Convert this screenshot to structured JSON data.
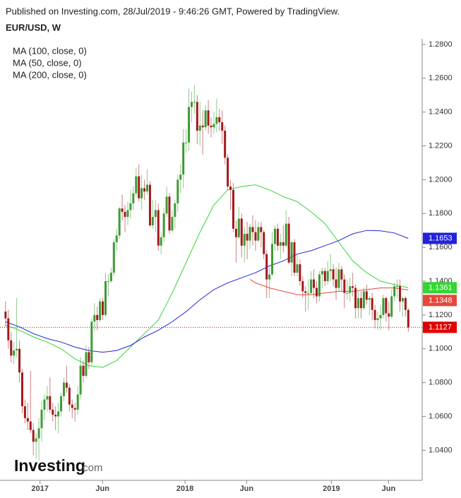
{
  "chart_data": {
    "type": "candlestick",
    "source": "Published on Investing.com, 28/Jul/2019 - 9:46:26 GMT, Powered by TradingView.",
    "title": "EUR/USD, W",
    "watermark": {
      "name": "Investing",
      "domain": ".com"
    },
    "up_color": "#3d9b35",
    "down_color": "#a3191b",
    "xlim": [
      -2,
      150
    ],
    "xticks": [
      {
        "value": 12.4,
        "label": "2017"
      },
      {
        "value": 34.9,
        "label": "Jun"
      },
      {
        "value": 64.6,
        "label": "2018"
      },
      {
        "value": 86.8,
        "label": "Jun"
      },
      {
        "value": 117.3,
        "label": "2019"
      },
      {
        "value": 137.9,
        "label": "Jun"
      }
    ],
    "ylim": [
      1.0222,
      1.2833
    ],
    "yticks": [
      {
        "value": 1.04,
        "label": "1.0400"
      },
      {
        "value": 1.06,
        "label": "1.0600"
      },
      {
        "value": 1.08,
        "label": "1.0800"
      },
      {
        "value": 1.1,
        "label": "1.1000"
      },
      {
        "value": 1.12,
        "label": "1.1200"
      },
      {
        "value": 1.14,
        "label": "1.1400"
      },
      {
        "value": 1.16,
        "label": "1.1600"
      },
      {
        "value": 1.18,
        "label": "1.1800"
      },
      {
        "value": 1.2,
        "label": "1.2000"
      },
      {
        "value": 1.22,
        "label": "1.2200"
      },
      {
        "value": 1.24,
        "label": "1.2400"
      },
      {
        "value": 1.26,
        "label": "1.2600"
      },
      {
        "value": 1.28,
        "label": "1.2800"
      }
    ],
    "grid": false,
    "open": [
      1.122,
      1.118,
      1.105,
      1.096,
      1.099,
      1.1,
      1.086,
      1.066,
      1.059,
      1.057,
      1.052,
      1.045,
      1.047,
      1.053,
      1.064,
      1.07,
      1.072,
      1.064,
      1.061,
      1.06,
      1.063,
      1.072,
      1.08,
      1.077,
      1.067,
      1.065,
      1.064,
      1.073,
      1.09,
      1.084,
      1.098,
      1.092,
      1.116,
      1.12,
      1.117,
      1.128,
      1.12,
      1.14,
      1.14,
      1.145,
      1.163,
      1.167,
      1.183,
      1.181,
      1.178,
      1.182,
      1.186,
      1.192,
      1.202,
      1.189,
      1.195,
      1.193,
      1.197,
      1.173,
      1.178,
      1.182,
      1.161,
      1.166,
      1.18,
      1.19,
      1.17,
      1.178,
      1.186,
      1.2,
      1.203,
      1.222,
      1.222,
      1.243,
      1.246,
      1.246,
      1.229,
      1.232,
      1.231,
      1.241,
      1.232,
      1.231,
      1.233,
      1.237,
      1.234,
      1.229,
      1.213,
      1.196,
      1.194,
      1.171,
      1.166,
      1.177,
      1.161,
      1.168,
      1.164,
      1.172,
      1.169,
      1.164,
      1.172,
      1.169,
      1.156,
      1.141,
      1.144,
      1.162,
      1.171,
      1.161,
      1.163,
      1.161,
      1.174,
      1.151,
      1.163,
      1.145,
      1.15,
      1.14,
      1.134,
      1.133,
      1.133,
      1.141,
      1.136,
      1.131,
      1.144,
      1.146,
      1.14,
      1.146,
      1.147,
      1.141,
      1.136,
      1.147,
      1.141,
      1.133,
      1.133,
      1.137,
      1.136,
      1.124,
      1.13,
      1.124,
      1.134,
      1.129,
      1.13,
      1.123,
      1.117,
      1.118,
      1.12,
      1.13,
      1.121,
      1.119,
      1.131,
      1.137,
      1.137,
      1.128,
      1.13,
      1.123
    ],
    "high": [
      1.128,
      1.123,
      1.11,
      1.104,
      1.13,
      1.105,
      1.088,
      1.07,
      1.068,
      1.087,
      1.056,
      1.05,
      1.059,
      1.069,
      1.073,
      1.078,
      1.083,
      1.068,
      1.066,
      1.068,
      1.074,
      1.083,
      1.09,
      1.079,
      1.07,
      1.068,
      1.078,
      1.095,
      1.093,
      1.102,
      1.101,
      1.118,
      1.127,
      1.125,
      1.13,
      1.13,
      1.145,
      1.144,
      1.148,
      1.165,
      1.171,
      1.184,
      1.191,
      1.185,
      1.187,
      1.194,
      1.196,
      1.207,
      1.209,
      1.203,
      1.2,
      1.206,
      1.199,
      1.188,
      1.188,
      1.186,
      1.169,
      1.183,
      1.196,
      1.192,
      1.182,
      1.188,
      1.203,
      1.209,
      1.23,
      1.23,
      1.254,
      1.252,
      1.256,
      1.25,
      1.246,
      1.241,
      1.244,
      1.247,
      1.237,
      1.24,
      1.248,
      1.242,
      1.241,
      1.232,
      1.215,
      1.2,
      1.198,
      1.176,
      1.184,
      1.18,
      1.172,
      1.175,
      1.174,
      1.179,
      1.176,
      1.175,
      1.175,
      1.17,
      1.158,
      1.148,
      1.169,
      1.173,
      1.174,
      1.168,
      1.173,
      1.182,
      1.178,
      1.164,
      1.165,
      1.156,
      1.153,
      1.143,
      1.137,
      1.141,
      1.146,
      1.147,
      1.14,
      1.146,
      1.148,
      1.148,
      1.152,
      1.156,
      1.15,
      1.148,
      1.151,
      1.149,
      1.144,
      1.141,
      1.142,
      1.145,
      1.138,
      1.134,
      1.134,
      1.136,
      1.138,
      1.131,
      1.133,
      1.126,
      1.122,
      1.126,
      1.132,
      1.131,
      1.128,
      1.135,
      1.139,
      1.141,
      1.141,
      1.131,
      1.131,
      1.124
    ],
    "low": [
      1.113,
      1.1,
      1.092,
      1.091,
      1.095,
      1.08,
      1.062,
      1.056,
      1.052,
      1.05,
      1.037,
      1.035,
      1.034,
      1.045,
      1.058,
      1.063,
      1.062,
      1.057,
      1.052,
      1.05,
      1.06,
      1.069,
      1.074,
      1.063,
      1.059,
      1.057,
      1.061,
      1.07,
      1.08,
      1.083,
      1.088,
      1.09,
      1.111,
      1.111,
      1.116,
      1.117,
      1.119,
      1.131,
      1.139,
      1.143,
      1.158,
      1.165,
      1.176,
      1.169,
      1.173,
      1.177,
      1.182,
      1.19,
      1.187,
      1.182,
      1.188,
      1.191,
      1.172,
      1.171,
      1.169,
      1.158,
      1.156,
      1.163,
      1.178,
      1.168,
      1.169,
      1.171,
      1.181,
      1.192,
      1.195,
      1.216,
      1.217,
      1.234,
      1.239,
      1.221,
      1.22,
      1.215,
      1.229,
      1.227,
      1.225,
      1.227,
      1.228,
      1.229,
      1.221,
      1.209,
      1.194,
      1.182,
      1.169,
      1.151,
      1.165,
      1.154,
      1.151,
      1.153,
      1.159,
      1.161,
      1.158,
      1.163,
      1.16,
      1.153,
      1.13,
      1.13,
      1.143,
      1.158,
      1.158,
      1.153,
      1.157,
      1.16,
      1.15,
      1.143,
      1.143,
      1.143,
      1.137,
      1.13,
      1.122,
      1.123,
      1.132,
      1.13,
      1.127,
      1.128,
      1.136,
      1.137,
      1.138,
      1.14,
      1.137,
      1.129,
      1.134,
      1.134,
      1.124,
      1.129,
      1.128,
      1.131,
      1.118,
      1.118,
      1.118,
      1.123,
      1.126,
      1.12,
      1.117,
      1.112,
      1.111,
      1.111,
      1.118,
      1.116,
      1.111,
      1.118,
      1.128,
      1.13,
      1.122,
      1.119,
      1.119,
      1.11
    ],
    "close": [
      1.118,
      1.105,
      1.096,
      1.099,
      1.1,
      1.086,
      1.066,
      1.059,
      1.057,
      1.052,
      1.045,
      1.047,
      1.053,
      1.064,
      1.07,
      1.072,
      1.064,
      1.061,
      1.06,
      1.063,
      1.072,
      1.08,
      1.077,
      1.067,
      1.065,
      1.064,
      1.073,
      1.09,
      1.084,
      1.098,
      1.092,
      1.116,
      1.12,
      1.117,
      1.128,
      1.12,
      1.14,
      1.14,
      1.145,
      1.163,
      1.167,
      1.183,
      1.181,
      1.178,
      1.182,
      1.186,
      1.192,
      1.202,
      1.189,
      1.195,
      1.193,
      1.197,
      1.173,
      1.178,
      1.182,
      1.161,
      1.166,
      1.18,
      1.19,
      1.17,
      1.178,
      1.186,
      1.2,
      1.203,
      1.222,
      1.222,
      1.243,
      1.246,
      1.246,
      1.229,
      1.232,
      1.231,
      1.241,
      1.232,
      1.231,
      1.233,
      1.237,
      1.234,
      1.229,
      1.213,
      1.196,
      1.194,
      1.171,
      1.166,
      1.177,
      1.161,
      1.168,
      1.164,
      1.172,
      1.169,
      1.164,
      1.172,
      1.169,
      1.156,
      1.141,
      1.144,
      1.162,
      1.171,
      1.161,
      1.163,
      1.161,
      1.174,
      1.151,
      1.163,
      1.145,
      1.15,
      1.14,
      1.134,
      1.133,
      1.133,
      1.141,
      1.136,
      1.131,
      1.144,
      1.146,
      1.14,
      1.146,
      1.147,
      1.141,
      1.136,
      1.147,
      1.141,
      1.133,
      1.133,
      1.137,
      1.136,
      1.124,
      1.13,
      1.124,
      1.134,
      1.129,
      1.13,
      1.123,
      1.117,
      1.118,
      1.12,
      1.13,
      1.121,
      1.119,
      1.131,
      1.137,
      1.137,
      1.128,
      1.13,
      1.123,
      1.1127
    ],
    "close_line_color": "#e00000",
    "series": [
      {
        "name": "MA (100, close, 0)",
        "color": "#e8463a",
        "x": [
          88,
          90,
          95,
          100,
          105,
          110,
          115,
          120,
          125,
          130,
          135,
          140,
          145
        ],
        "values": [
          1.141,
          1.139,
          1.136,
          1.134,
          1.132,
          1.132,
          1.133,
          1.134,
          1.134,
          1.135,
          1.136,
          1.136,
          1.1348
        ]
      },
      {
        "name": "MA (50, close, 0)",
        "color": "#33d633",
        "x": [
          0,
          5,
          10,
          15,
          20,
          25,
          30,
          35,
          40,
          45,
          50,
          55,
          60,
          65,
          70,
          75,
          80,
          85,
          90,
          95,
          100,
          105,
          110,
          115,
          120,
          125,
          130,
          135,
          140,
          145
        ],
        "values": [
          1.114,
          1.111,
          1.107,
          1.104,
          1.1,
          1.094,
          1.09,
          1.089,
          1.093,
          1.101,
          1.109,
          1.117,
          1.133,
          1.151,
          1.169,
          1.185,
          1.194,
          1.196,
          1.197,
          1.194,
          1.19,
          1.187,
          1.181,
          1.174,
          1.163,
          1.152,
          1.145,
          1.14,
          1.138,
          1.1361
        ]
      },
      {
        "name": "MA (200, close, 0)",
        "color": "#2222dd",
        "x": [
          0,
          5,
          10,
          15,
          20,
          25,
          30,
          35,
          40,
          45,
          50,
          55,
          60,
          65,
          70,
          75,
          80,
          85,
          90,
          95,
          100,
          105,
          110,
          115,
          120,
          125,
          130,
          135,
          140,
          145
        ],
        "values": [
          1.116,
          1.113,
          1.109,
          1.106,
          1.104,
          1.101,
          1.099,
          1.098,
          1.099,
          1.102,
          1.107,
          1.111,
          1.116,
          1.122,
          1.129,
          1.135,
          1.139,
          1.142,
          1.145,
          1.149,
          1.152,
          1.156,
          1.158,
          1.161,
          1.164,
          1.168,
          1.17,
          1.1698,
          1.1685,
          1.1653
        ]
      }
    ]
  }
}
